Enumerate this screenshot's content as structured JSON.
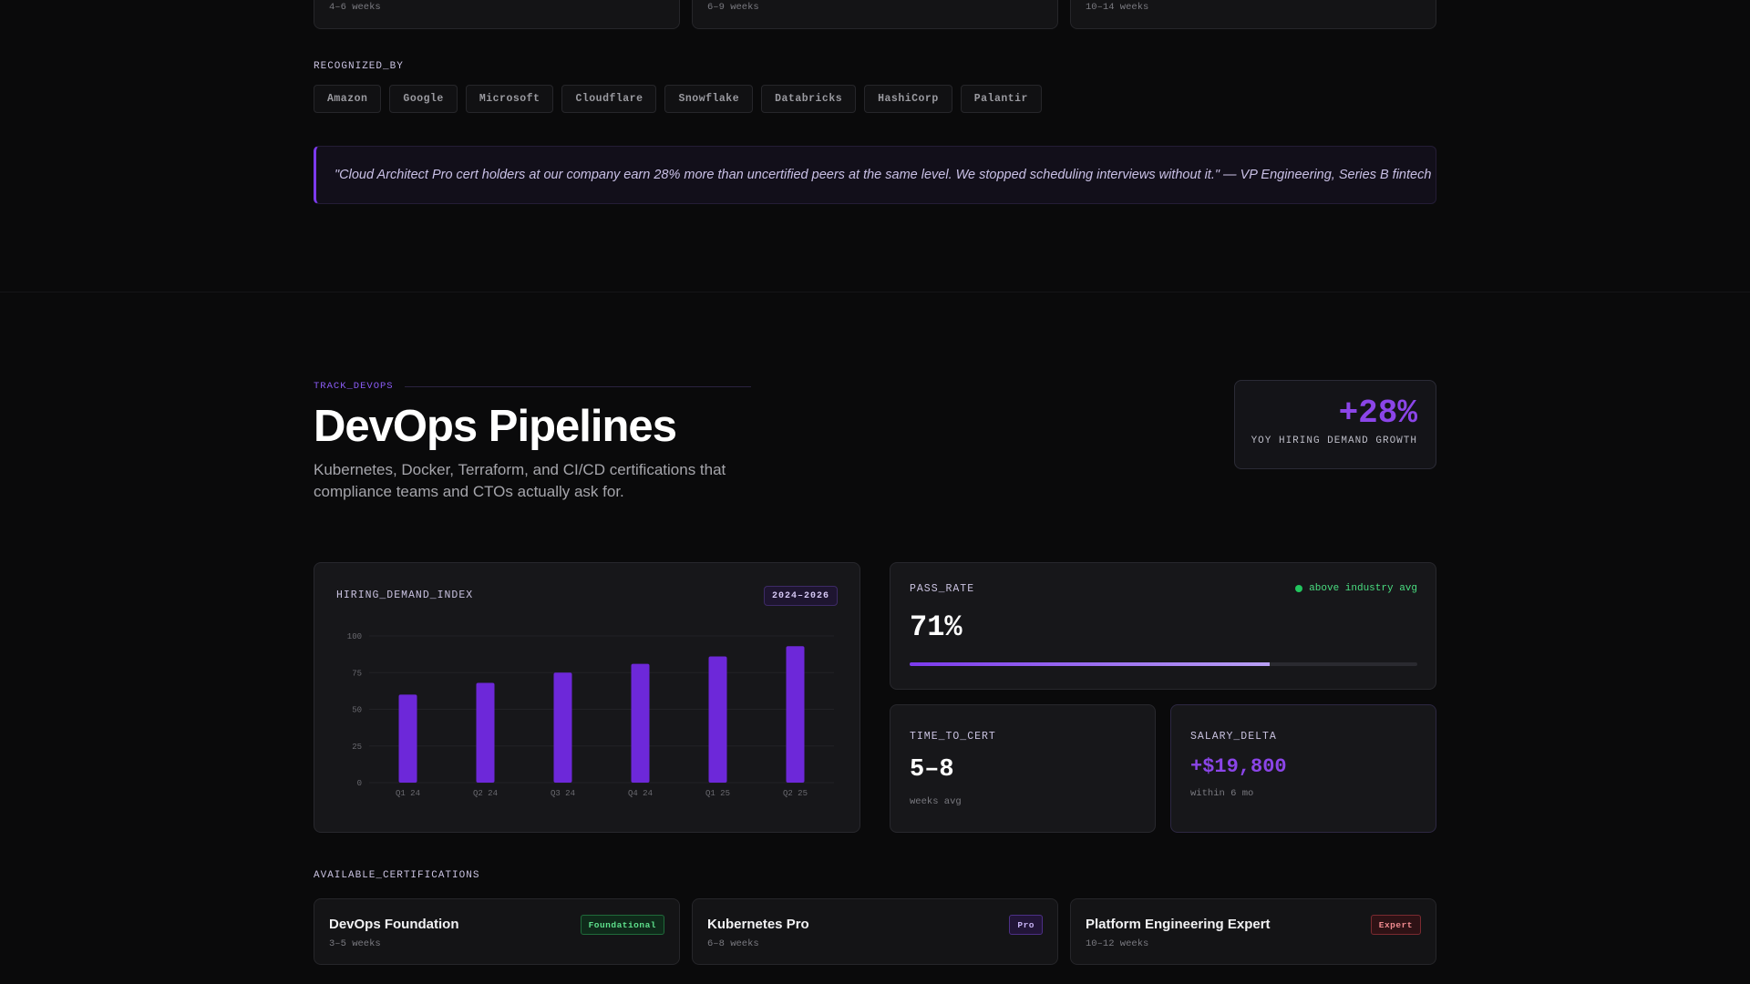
{
  "top_cards": [
    {
      "weeks": "4–6 weeks"
    },
    {
      "weeks": "6–9 weeks"
    },
    {
      "weeks": "10–14 weeks"
    }
  ],
  "recognized": {
    "label": "RECOGNIZED_BY",
    "companies": [
      "Amazon",
      "Google",
      "Microsoft",
      "Cloudflare",
      "Snowflake",
      "Databricks",
      "HashiCorp",
      "Palantir"
    ]
  },
  "quote": "\"Cloud Architect Pro cert holders at our company earn 28% more than uncertified peers at the same level. We stopped scheduling interviews without it.\" — VP Engineering, Series B fintech",
  "track": {
    "label": "TRACK_DEVOPS",
    "title": "DevOps Pipelines",
    "subtitle": "Kubernetes, Docker, Terraform, and CI/CD certifications that compliance teams and CTOs actually ask for."
  },
  "growth": {
    "value": "+28%",
    "label": "YOY HIRING DEMAND GROWTH"
  },
  "chart_panel": {
    "title": "HIRING_DEMAND_INDEX",
    "badge": "2024–2026"
  },
  "chart_data": {
    "type": "bar",
    "title": "HIRING_DEMAND_INDEX",
    "categories": [
      "Q1 24",
      "Q2 24",
      "Q3 24",
      "Q4 24",
      "Q1 25",
      "Q2 25"
    ],
    "values": [
      60,
      68,
      75,
      81,
      86,
      93
    ],
    "ylim": [
      0,
      100
    ],
    "yticks": [
      0,
      25,
      50,
      75,
      100
    ],
    "grid": true,
    "color": "#6d28d9"
  },
  "pass_rate": {
    "label": "PASS_RATE",
    "status": "above industry avg",
    "value": "71%",
    "fraction": 0.71
  },
  "time_to_cert": {
    "label": "TIME_TO_CERT",
    "value": "5–8",
    "note": "weeks avg"
  },
  "salary_delta": {
    "label": "SALARY_DELTA",
    "value": "+$19,800",
    "note": "within 6 mo"
  },
  "available": {
    "label": "AVAILABLE_CERTIFICATIONS",
    "certs": [
      {
        "name": "DevOps Foundation",
        "level": "Foundational",
        "weeks": "3–5 weeks"
      },
      {
        "name": "Kubernetes Pro",
        "level": "Pro",
        "weeks": "6–8 weeks"
      },
      {
        "name": "Platform Engineering Expert",
        "level": "Expert",
        "weeks": "10–12 weeks"
      }
    ]
  },
  "colors": {
    "accent": "#8b45e8",
    "bar": "#6d28d9",
    "success": "#22c55e",
    "background": "#0a0a0b"
  }
}
